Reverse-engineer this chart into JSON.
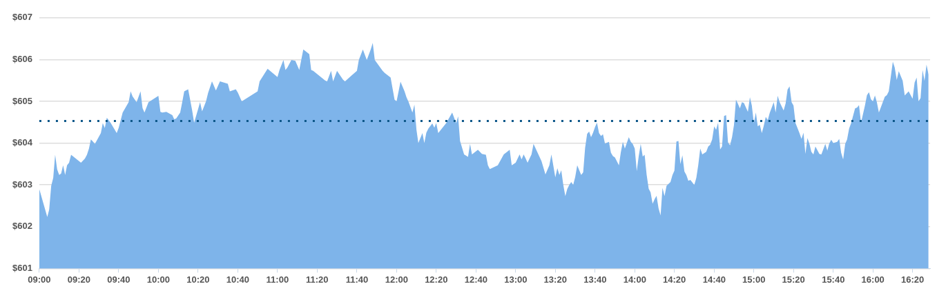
{
  "chart_data": {
    "type": "area",
    "x": [
      9,
      9.067,
      9.083,
      9.1,
      9.117,
      9.133,
      9.15,
      9.167,
      9.183,
      9.2,
      9.217,
      9.233,
      9.25,
      9.267,
      9.35,
      9.383,
      9.4,
      9.417,
      9.433,
      9.45,
      9.467,
      9.517,
      9.533,
      9.55,
      9.567,
      9.6,
      9.65,
      9.667,
      9.7,
      9.75,
      9.767,
      9.783,
      9.817,
      9.85,
      9.867,
      9.883,
      9.917,
      10,
      10.017,
      10.033,
      10.067,
      10.117,
      10.133,
      10.15,
      10.183,
      10.2,
      10.217,
      10.25,
      10.283,
      10.3,
      10.333,
      10.35,
      10.367,
      10.4,
      10.417,
      10.45,
      10.483,
      10.517,
      10.583,
      10.6,
      10.65,
      10.667,
      10.7,
      10.833,
      10.85,
      10.917,
      11,
      11.017,
      11.05,
      11.067,
      11.083,
      11.117,
      11.15,
      11.183,
      11.2,
      11.217,
      11.267,
      11.283,
      11.3,
      11.4,
      11.417,
      11.45,
      11.467,
      11.5,
      11.55,
      11.567,
      11.667,
      11.683,
      11.717,
      11.75,
      11.783,
      11.8,
      11.817,
      11.883,
      11.9,
      11.95,
      11.983,
      12,
      12.017,
      12.033,
      12.067,
      12.083,
      12.1,
      12.133,
      12.15,
      12.167,
      12.183,
      12.217,
      12.233,
      12.25,
      12.267,
      12.3,
      12.317,
      12.333,
      12.35,
      12.417,
      12.467,
      12.5,
      12.517,
      12.533,
      12.567,
      12.6,
      12.617,
      12.633,
      12.683,
      12.717,
      12.75,
      12.767,
      12.783,
      12.85,
      12.9,
      12.95,
      12.967,
      13,
      13.033,
      13.05,
      13.067,
      13.083,
      13.1,
      13.133,
      13.15,
      13.217,
      13.25,
      13.283,
      13.3,
      13.317,
      13.333,
      13.35,
      13.367,
      13.383,
      13.4,
      13.417,
      13.433,
      13.45,
      13.467,
      13.483,
      13.5,
      13.517,
      13.55,
      13.567,
      13.583,
      13.6,
      13.617,
      13.633,
      13.65,
      13.667,
      13.683,
      13.7,
      13.717,
      13.733,
      13.75,
      13.783,
      13.8,
      13.817,
      13.833,
      13.867,
      13.883,
      13.9,
      13.917,
      13.95,
      13.967,
      13.983,
      14,
      14.017,
      14.033,
      14.05,
      14.067,
      14.083,
      14.1,
      14.117,
      14.133,
      14.15,
      14.167,
      14.183,
      14.2,
      14.217,
      14.233,
      14.25,
      14.267,
      14.3,
      14.317,
      14.333,
      14.35,
      14.367,
      14.383,
      14.4,
      14.417,
      14.433,
      14.45,
      14.467,
      14.5,
      14.517,
      14.533,
      14.55,
      14.567,
      14.6,
      14.617,
      14.633,
      14.65,
      14.667,
      14.683,
      14.7,
      14.717,
      14.733,
      14.75,
      14.767,
      14.783,
      14.8,
      14.817,
      14.833,
      14.85,
      14.867,
      14.883,
      14.9,
      14.917,
      14.95,
      14.967,
      14.983,
      15,
      15.017,
      15.033,
      15.05,
      15.067,
      15.083,
      15.1,
      15.117,
      15.133,
      15.167,
      15.183,
      15.2,
      15.217,
      15.25,
      15.267,
      15.283,
      15.3,
      15.317,
      15.333,
      15.35,
      15.383,
      15.4,
      15.417,
      15.433,
      15.45,
      15.467,
      15.483,
      15.5,
      15.517,
      15.55,
      15.567,
      15.6,
      15.617,
      15.633,
      15.65,
      15.667,
      15.7,
      15.717,
      15.733,
      15.75,
      15.767,
      15.783,
      15.8,
      15.817,
      15.85,
      15.867,
      15.883,
      15.9,
      15.933,
      15.95,
      15.967,
      15.983,
      16,
      16.017,
      16.033,
      16.05,
      16.1,
      16.117,
      16.133,
      16.15,
      16.167,
      16.183,
      16.2,
      16.217,
      16.25,
      16.267,
      16.3,
      16.333,
      16.35,
      16.367,
      16.383,
      16.4,
      16.417,
      16.433,
      16.45,
      16.467
    ],
    "values": [
      602.9,
      602.23,
      602.41,
      602.98,
      603.17,
      603.72,
      603.37,
      603.24,
      603.27,
      603.47,
      603.24,
      603.47,
      603.53,
      603.72,
      603.53,
      603.63,
      603.72,
      603.87,
      604.09,
      604.04,
      603.98,
      604.24,
      604.48,
      604.36,
      604.61,
      604.48,
      604.24,
      604.37,
      604.73,
      604.98,
      605.24,
      605.12,
      604.98,
      605.24,
      604.84,
      604.73,
      604.98,
      605.13,
      604.75,
      604.73,
      604.75,
      604.67,
      604.57,
      604.59,
      604.73,
      604.98,
      605.24,
      605.29,
      604.79,
      604.49,
      604.81,
      604.98,
      604.76,
      605.0,
      605.2,
      605.48,
      605.26,
      605.48,
      605.42,
      605.24,
      605.29,
      605.21,
      605.0,
      605.24,
      605.48,
      605.78,
      605.58,
      605.75,
      605.99,
      605.75,
      605.81,
      605.99,
      605.97,
      605.75,
      606.0,
      606.24,
      606.13,
      605.75,
      605.73,
      605.5,
      605.48,
      605.73,
      605.48,
      605.73,
      605.52,
      605.48,
      605.73,
      605.99,
      606.24,
      605.99,
      606.24,
      606.4,
      605.99,
      605.73,
      605.68,
      605.57,
      605.04,
      605.0,
      605.24,
      605.47,
      605.24,
      605.1,
      604.99,
      604.73,
      604.92,
      604.32,
      604.0,
      604.24,
      604.0,
      604.25,
      604.35,
      604.47,
      604.37,
      604.48,
      604.24,
      604.48,
      604.73,
      604.48,
      604.64,
      604.05,
      603.73,
      603.67,
      603.98,
      603.73,
      603.84,
      603.74,
      603.72,
      603.47,
      603.38,
      603.47,
      603.73,
      603.84,
      603.47,
      603.53,
      603.73,
      603.61,
      603.73,
      603.64,
      603.53,
      603.73,
      603.98,
      603.57,
      603.25,
      603.47,
      603.73,
      603.45,
      603.18,
      603.4,
      603.24,
      603.35,
      603.0,
      602.73,
      602.9,
      603.0,
      603.07,
      603.0,
      603.19,
      603.47,
      603.24,
      603.3,
      603.88,
      604.22,
      604.28,
      604.14,
      604.25,
      604.39,
      604.49,
      604.24,
      604.17,
      604.21,
      603.99,
      604.03,
      603.77,
      603.69,
      603.66,
      603.47,
      603.78,
      604.03,
      603.87,
      604.14,
      604.03,
      603.98,
      603.87,
      603.33,
      603.68,
      603.98,
      603.68,
      603.72,
      603.24,
      602.91,
      602.82,
      602.55,
      602.66,
      602.74,
      602.44,
      602.27,
      602.93,
      602.73,
      602.98,
      603.07,
      603.24,
      603.34,
      604.04,
      604.05,
      603.5,
      603.71,
      603.32,
      603.24,
      603.1,
      603.12,
      603.0,
      603.17,
      603.47,
      603.87,
      603.73,
      603.79,
      603.92,
      603.96,
      604.09,
      604.4,
      604.32,
      604.49,
      603.85,
      603.92,
      604.65,
      604.67,
      604.02,
      603.95,
      604.14,
      604.43,
      605.04,
      604.94,
      604.83,
      604.98,
      604.96,
      604.75,
      605.1,
      604.9,
      604.48,
      604.73,
      604.4,
      604.44,
      604.24,
      604.41,
      604.63,
      604.55,
      604.72,
      604.98,
      604.73,
      605.13,
      604.98,
      604.78,
      604.95,
      605.28,
      605.36,
      604.98,
      604.9,
      604.48,
      604.24,
      604.1,
      604.25,
      603.74,
      604.12,
      603.98,
      603.79,
      603.73,
      603.92,
      603.74,
      603.73,
      603.98,
      603.82,
      603.99,
      604.08,
      604.0,
      604.03,
      604.1,
      603.77,
      603.61,
      603.98,
      604.09,
      604.35,
      604.48,
      604.83,
      604.85,
      604.91,
      604.49,
      604.9,
      605.15,
      605.22,
      605.05,
      605.0,
      605.14,
      604.98,
      604.73,
      605.11,
      605.15,
      605.24,
      605.59,
      605.95,
      605.81,
      605.51,
      605.72,
      605.49,
      605.14,
      605.24,
      605.06,
      605.45,
      605.57,
      605.0,
      605.08,
      605.75,
      605.49,
      605.88,
      605.64
    ],
    "color": "#7eb4ea",
    "xlim": [
      9,
      16.48
    ],
    "xticks": [
      {
        "value": 9,
        "label": "09:00"
      },
      {
        "value": 9.333,
        "label": "09:20"
      },
      {
        "value": 9.667,
        "label": "09:40"
      },
      {
        "value": 10,
        "label": "10:00"
      },
      {
        "value": 10.333,
        "label": "10:20"
      },
      {
        "value": 10.667,
        "label": "10:40"
      },
      {
        "value": 11,
        "label": "11:00"
      },
      {
        "value": 11.333,
        "label": "11:20"
      },
      {
        "value": 11.667,
        "label": "11:40"
      },
      {
        "value": 12,
        "label": "12:00"
      },
      {
        "value": 12.333,
        "label": "12:20"
      },
      {
        "value": 12.667,
        "label": "12:40"
      },
      {
        "value": 13,
        "label": "13:00"
      },
      {
        "value": 13.333,
        "label": "13:20"
      },
      {
        "value": 13.667,
        "label": "13:40"
      },
      {
        "value": 14,
        "label": "14:00"
      },
      {
        "value": 14.333,
        "label": "14:20"
      },
      {
        "value": 14.667,
        "label": "14:40"
      },
      {
        "value": 15,
        "label": "15:00"
      },
      {
        "value": 15.333,
        "label": "15:20"
      },
      {
        "value": 15.667,
        "label": "15:40"
      },
      {
        "value": 16,
        "label": "16:00"
      },
      {
        "value": 16.333,
        "label": "16:20"
      }
    ],
    "ylim": [
      601,
      607
    ],
    "yticks": [
      {
        "value": 601,
        "label": "$601"
      },
      {
        "value": 602,
        "label": "$602"
      },
      {
        "value": 603,
        "label": "$603"
      },
      {
        "value": 604,
        "label": "$604"
      },
      {
        "value": 605,
        "label": "$605"
      },
      {
        "value": 606,
        "label": "$606"
      },
      {
        "value": 607,
        "label": "$607"
      }
    ],
    "grid": "y",
    "ref_lines": [
      {
        "axis": "y",
        "value": 604.53,
        "color": "#0b5688",
        "line_style": "dotted"
      }
    ]
  }
}
